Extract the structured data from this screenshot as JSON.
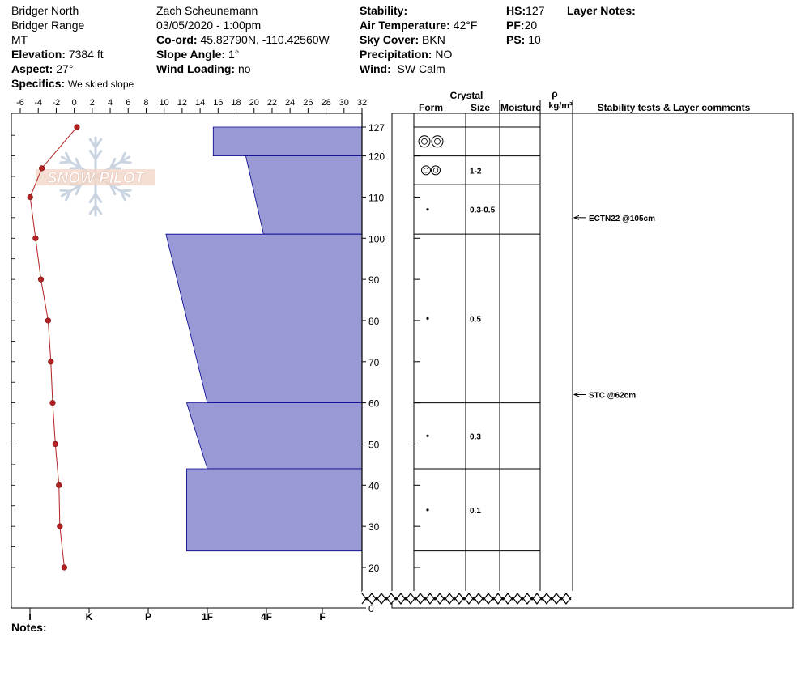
{
  "header": {
    "location": "Bridger North",
    "range": "Bridger Range",
    "state": "MT",
    "elevation_label": "Elevation:",
    "elevation_value": "7384 ft",
    "aspect_label": "Aspect:",
    "aspect_value": "27°",
    "specifics_label": "Specifics:",
    "specifics_value": "We skied slope",
    "observer": "Zach Scheunemann",
    "datetime": "03/05/2020 - 1:00pm",
    "coord_label": "Co-ord:",
    "coord_value": "45.82790N, -110.42560W",
    "slope_label": "Slope Angle:",
    "slope_value": "1°",
    "wind_loading_label": "Wind Loading:",
    "wind_loading_value": "no",
    "stability_label": "Stability:",
    "stability_value": "",
    "air_temp_label": "Air Temperature:",
    "air_temp_value": "42°F",
    "sky_label": "Sky Cover:",
    "sky_value": "BKN",
    "precip_label": "Precipitation:",
    "precip_value": "NO",
    "wind_label": "Wind:",
    "wind_value": "SW Calm",
    "hs_label": "HS:",
    "hs_value": "127",
    "pf_label": "PF:",
    "pf_value": "20",
    "ps_label": "PS:",
    "ps_value": "10",
    "layer_notes_label": "Layer Notes:"
  },
  "logo_text": "SNOW PILOT",
  "notes_label": "Notes:",
  "colors": {
    "hardness_fill": "#9999d6",
    "hardness_stroke": "#00008b",
    "temp": "#b22222"
  },
  "columns": {
    "crystal": "Crystal",
    "form": "Form",
    "size": "Size",
    "moisture": "Moisture",
    "rho": "ρ",
    "density_unit": "kg/m³",
    "stability": "Stability tests & Layer comments"
  },
  "chart_data": {
    "type": "snow-profile",
    "temp_axis": {
      "ticks": [
        "-6",
        "-4",
        "-2",
        "0",
        "2",
        "4",
        "6",
        "8",
        "10",
        "12",
        "14",
        "16",
        "18",
        "20",
        "22",
        "24",
        "26",
        "28",
        "30",
        "32"
      ],
      "min": -6,
      "max": 32,
      "unit": "°F"
    },
    "hardness_axis": {
      "ticks": [
        "I",
        "K",
        "P",
        "1F",
        "4F",
        "F"
      ]
    },
    "depth_axis": {
      "ticks": [
        "127",
        "120",
        "110",
        "100",
        "90",
        "80",
        "70",
        "60",
        "50",
        "40",
        "30",
        "20",
        "0"
      ],
      "min": 0,
      "max": 127,
      "unit": "cm",
      "break_between": [
        0,
        20
      ]
    },
    "temperature_profile": [
      {
        "depth": 127,
        "temp": 0.3
      },
      {
        "depth": 117,
        "temp": -3.6
      },
      {
        "depth": 110,
        "temp": -4.9
      },
      {
        "depth": 100,
        "temp": -4.3
      },
      {
        "depth": 90,
        "temp": -3.7
      },
      {
        "depth": 80,
        "temp": -2.9
      },
      {
        "depth": 70,
        "temp": -2.6
      },
      {
        "depth": 60,
        "temp": -2.4
      },
      {
        "depth": 50,
        "temp": -2.1
      },
      {
        "depth": 40,
        "temp": -1.7
      },
      {
        "depth": 30,
        "temp": -1.6
      },
      {
        "depth": 20,
        "temp": -1.1
      }
    ],
    "hardness_layers": [
      {
        "top": 127,
        "bottom": 120,
        "hardness_top": 3.1,
        "hardness_bottom": 3.1
      },
      {
        "top": 120,
        "bottom": 101,
        "hardness_top": 3.65,
        "hardness_bottom": 3.95
      },
      {
        "top": 101,
        "bottom": 60,
        "hardness_top": 2.3,
        "hardness_bottom": 3.0
      },
      {
        "top": 60,
        "bottom": 44,
        "hardness_top": 2.65,
        "hardness_bottom": 3.0
      },
      {
        "top": 44,
        "bottom": 24,
        "hardness_top": 2.65,
        "hardness_bottom": 2.65
      }
    ],
    "layers": [
      {
        "top": 127,
        "bottom": 120,
        "form": "rounded",
        "size": ""
      },
      {
        "top": 120,
        "bottom": 113,
        "form": "rounded",
        "size": "1-2"
      },
      {
        "top": 113,
        "bottom": 101,
        "form": "dot",
        "size": "0.3-0.5"
      },
      {
        "top": 101,
        "bottom": 60,
        "form": "dot",
        "size": "0.5"
      },
      {
        "top": 60,
        "bottom": 44,
        "form": "dot",
        "size": "0.3"
      },
      {
        "top": 44,
        "bottom": 24,
        "form": "dot",
        "size": "0.1"
      }
    ],
    "stability_tests": [
      {
        "depth": 105,
        "label": "ECTN22 @105cm"
      },
      {
        "depth": 62,
        "label": "STC @62cm"
      }
    ]
  }
}
